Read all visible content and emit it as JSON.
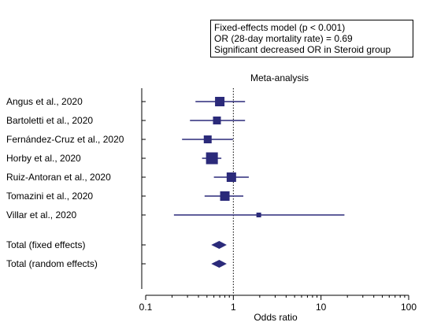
{
  "legend": {
    "line1": "Fixed-effects model (p < 0.001)",
    "line2": "OR (28-day mortality rate) = 0.69",
    "line3": "Significant decreased OR in Steroid group"
  },
  "chart_data": {
    "type": "forest",
    "title": "Meta-analysis",
    "xlabel": "Odds ratio",
    "xscale": "log",
    "xlim": [
      0.1,
      100
    ],
    "xticks": [
      "0.1",
      "1",
      "10",
      "100"
    ],
    "reference_line": 1,
    "studies": [
      {
        "label": "Angus et al., 2020",
        "or": 0.7,
        "lo": 0.37,
        "hi": 1.36,
        "weight": "large"
      },
      {
        "label": "Bartoletti et al., 2020",
        "or": 0.65,
        "lo": 0.32,
        "hi": 1.36,
        "weight": "medium"
      },
      {
        "label": "Fernández-Cruz et al., 2020",
        "or": 0.51,
        "lo": 0.26,
        "hi": 0.99,
        "weight": "medium"
      },
      {
        "label": "Horby et al., 2020",
        "or": 0.57,
        "lo": 0.44,
        "hi": 0.73,
        "weight": "xlarge"
      },
      {
        "label": "Ruiz-Antoran et al., 2020",
        "or": 0.95,
        "lo": 0.6,
        "hi": 1.5,
        "weight": "large"
      },
      {
        "label": "Tomazini et al., 2020",
        "or": 0.8,
        "lo": 0.47,
        "hi": 1.3,
        "weight": "large"
      },
      {
        "label": "Villar et al., 2020",
        "or": 1.95,
        "lo": 0.21,
        "hi": 18.5,
        "weight": "small"
      }
    ],
    "totals": [
      {
        "label": "Total (fixed effects)",
        "or": 0.69,
        "lo": 0.56,
        "hi": 0.84
      },
      {
        "label": "Total (random effects)",
        "or": 0.69,
        "lo": 0.56,
        "hi": 0.84
      }
    ],
    "colors": {
      "marker": "#2b2a7a",
      "axis": "#000000"
    }
  }
}
